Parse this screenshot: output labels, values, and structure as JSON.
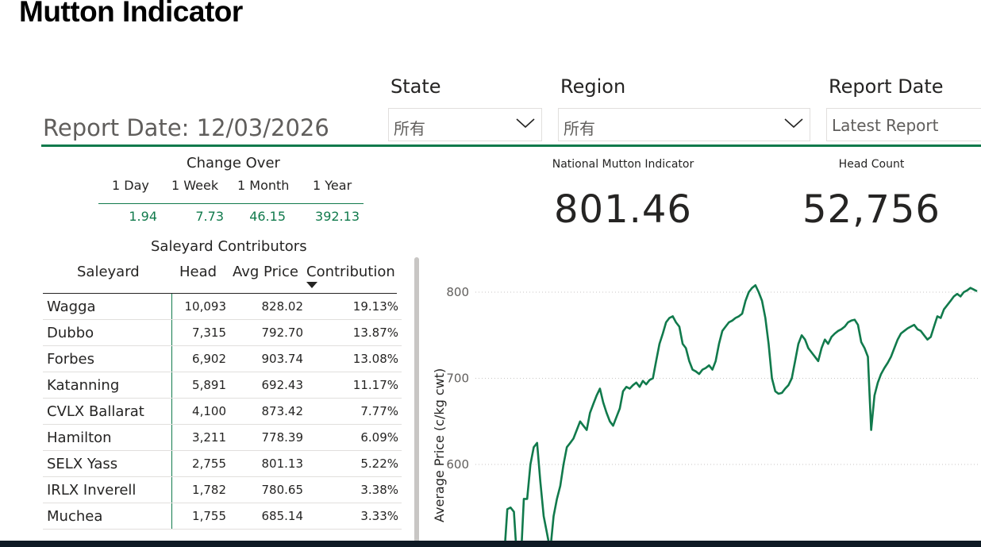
{
  "page": {
    "title": "Mutton Indicator"
  },
  "filters": {
    "report_date_label": "Report Date: 12/03/2026",
    "state": {
      "label": "State",
      "value": "所有"
    },
    "region": {
      "label": "Region",
      "value": "所有"
    },
    "report_date": {
      "label": "Report Date",
      "value": "Latest Report"
    }
  },
  "change_over": {
    "title": "Change Over",
    "periods": [
      "1 Day",
      "1 Week",
      "1 Month",
      "1 Year"
    ],
    "values": [
      "1.94",
      "7.73",
      "46.15",
      "392.13"
    ]
  },
  "kpis": {
    "indicator": {
      "label": "National Mutton Indicator",
      "value": "801.46"
    },
    "head_count": {
      "label": "Head Count",
      "value": "52,756"
    }
  },
  "saleyards": {
    "title": "Saleyard Contributors",
    "columns": [
      "Saleyard",
      "Head",
      "Avg Price",
      "Contribution"
    ],
    "sort_column": "Contribution",
    "rows": [
      [
        "Wagga",
        "10,093",
        "828.02",
        "19.13%"
      ],
      [
        "Dubbo",
        "7,315",
        "792.70",
        "13.87%"
      ],
      [
        "Forbes",
        "6,902",
        "903.74",
        "13.08%"
      ],
      [
        "Katanning",
        "5,891",
        "692.43",
        "11.17%"
      ],
      [
        "CVLX Ballarat",
        "4,100",
        "873.42",
        "7.77%"
      ],
      [
        "Hamilton",
        "3,211",
        "778.39",
        "6.09%"
      ],
      [
        "SELX Yass",
        "2,755",
        "801.13",
        "5.22%"
      ],
      [
        "IRLX Inverell",
        "1,782",
        "780.65",
        "3.38%"
      ],
      [
        "Muchea",
        "1,755",
        "685.14",
        "3.33%"
      ]
    ]
  },
  "chart_data": {
    "type": "line",
    "ylabel": "Average Price (c/kg cwt)",
    "xlabel": "",
    "yticks": [
      600,
      700,
      800
    ],
    "color": "#117a4c",
    "grid": true,
    "y": [
      490,
      548,
      550,
      545,
      485,
      480,
      560,
      560,
      600,
      620,
      625,
      580,
      540,
      520,
      500,
      540,
      560,
      575,
      600,
      620,
      625,
      630,
      640,
      650,
      645,
      640,
      660,
      670,
      680,
      688,
      672,
      660,
      650,
      645,
      655,
      665,
      685,
      690,
      688,
      692,
      695,
      690,
      697,
      693,
      698,
      700,
      720,
      740,
      752,
      765,
      770,
      772,
      765,
      760,
      740,
      735,
      720,
      710,
      708,
      705,
      710,
      712,
      715,
      710,
      720,
      740,
      755,
      760,
      765,
      767,
      770,
      772,
      775,
      790,
      800,
      805,
      808,
      800,
      790,
      770,
      740,
      700,
      685,
      682,
      683,
      688,
      692,
      700,
      720,
      740,
      750,
      745,
      735,
      730,
      725,
      720,
      735,
      745,
      740,
      748,
      752,
      755,
      757,
      760,
      765,
      767,
      768,
      762,
      742,
      735,
      725,
      640,
      680,
      695,
      705,
      712,
      718,
      725,
      735,
      745,
      752,
      755,
      758,
      760,
      762,
      757,
      755,
      750,
      745,
      748,
      760,
      772,
      770,
      780,
      785,
      790,
      795,
      798,
      795,
      800,
      802,
      805,
      803,
      801
    ]
  }
}
